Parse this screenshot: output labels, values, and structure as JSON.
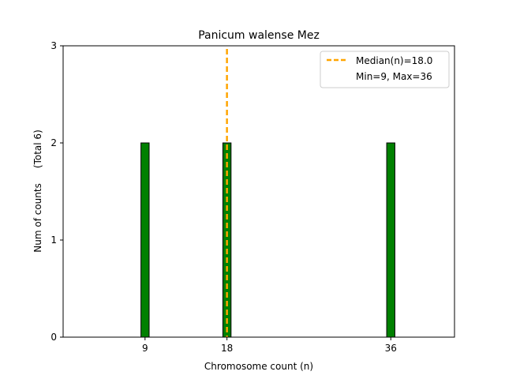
{
  "chart_data": {
    "type": "bar",
    "title": "Panicum walense Mez",
    "xlabel": "Chromosome count (n)",
    "ylabel": "Num of counts     (Total 6)",
    "x": [
      9,
      18,
      36
    ],
    "values": [
      2,
      2,
      2
    ],
    "xticks": [
      9,
      18,
      36
    ],
    "yticks": [
      0,
      1,
      2,
      3
    ],
    "xlim": [
      0,
      43
    ],
    "ylim": [
      0,
      3
    ],
    "bar_width": 0.9,
    "baseline_x_end": 39,
    "bar_color": "#008000",
    "bar_edge_color": "#000000",
    "median": {
      "value": 18.0,
      "label": "Median(n)=18.0",
      "color": "#ffa500"
    },
    "range_label": "Min=9, Max=36",
    "legend_position": "top-right",
    "grid": false
  }
}
